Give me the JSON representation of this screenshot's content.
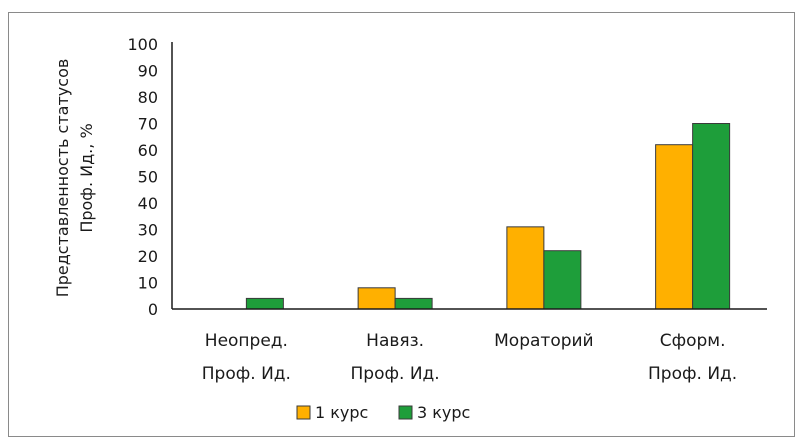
{
  "chart_data": {
    "type": "bar",
    "ylabel_lines": [
      "Представленность статусов",
      "Проф. Ид., %"
    ],
    "categories": [
      [
        "Неопред.",
        "Проф. Ид."
      ],
      [
        "Навяз.",
        "Проф. Ид."
      ],
      [
        "Мораторий"
      ],
      [
        "Сформ.",
        "Проф. Ид."
      ]
    ],
    "series": [
      {
        "name": "1 курс",
        "color": "#FFB000",
        "values": [
          0,
          8,
          31,
          62
        ]
      },
      {
        "name": "3 курс",
        "color": "#1E9E3A",
        "values": [
          4,
          4,
          22,
          70
        ]
      }
    ],
    "ylim": [
      0,
      100
    ],
    "yticks": [
      0,
      10,
      20,
      30,
      40,
      50,
      60,
      70,
      80,
      90,
      100
    ],
    "grid": false,
    "legend_position": "bottom"
  }
}
